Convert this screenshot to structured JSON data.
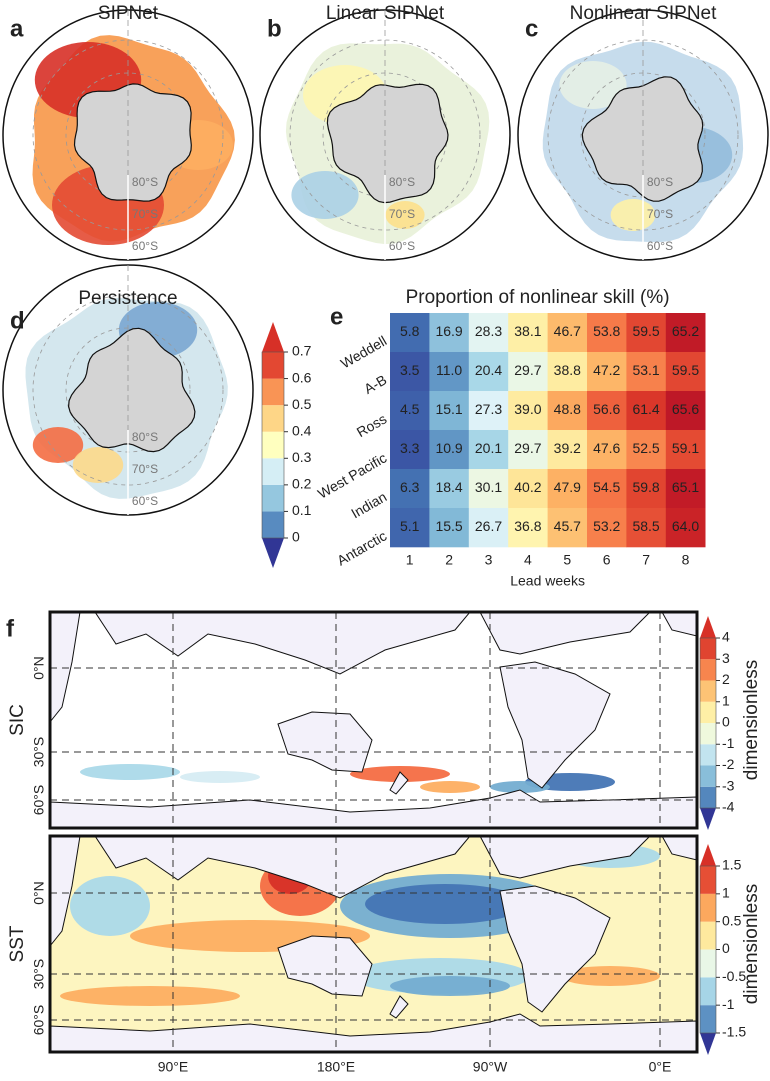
{
  "panels": [
    {
      "label": "a",
      "title": "SIPNet"
    },
    {
      "label": "b",
      "title": "Linear SIPNet"
    },
    {
      "label": "c",
      "title": "Nonlinear SIPNet"
    },
    {
      "label": "d",
      "title": "Persistence"
    }
  ],
  "polar_labels": [
    "80°S",
    "70°S",
    "60°S"
  ],
  "polar_colorbar": {
    "ticks": [
      0.7,
      0.6,
      0.5,
      0.4,
      0.3,
      0.2,
      0.1,
      0
    ]
  },
  "chart_data": {
    "type": "heatmap",
    "label": "e",
    "title": "Proportion of nonlinear skill (%)",
    "xlabel": "Lead weeks",
    "rows": [
      "Weddell",
      "A-B",
      "Ross",
      "West Pacific",
      "Indian",
      "Antarctic"
    ],
    "columns": [
      1,
      2,
      3,
      4,
      5,
      6,
      7,
      8
    ],
    "values": [
      [
        5.8,
        16.9,
        28.3,
        38.1,
        46.7,
        53.8,
        59.5,
        65.2
      ],
      [
        3.5,
        11.0,
        20.4,
        29.7,
        38.8,
        47.2,
        53.1,
        59.5
      ],
      [
        4.5,
        15.1,
        27.3,
        39.0,
        48.8,
        56.6,
        61.4,
        65.6
      ],
      [
        3.3,
        10.9,
        20.1,
        29.7,
        39.2,
        47.6,
        52.5,
        59.1
      ],
      [
        6.3,
        18.4,
        30.1,
        40.2,
        47.9,
        54.5,
        59.8,
        65.1
      ],
      [
        5.1,
        15.5,
        26.7,
        36.8,
        45.7,
        53.2,
        58.5,
        64.0
      ]
    ],
    "value_labels": [
      [
        "5.8",
        "16.9",
        "28.3",
        "38.1",
        "46.7",
        "53.8",
        "59.5",
        "65.2"
      ],
      [
        "3.5",
        "11.0",
        "20.4",
        "29.7",
        "38.8",
        "47.2",
        "53.1",
        "59.5"
      ],
      [
        "4.5",
        "15.1",
        "27.3",
        "39.0",
        "48.8",
        "56.6",
        "61.4",
        "65.6"
      ],
      [
        "3.3",
        "10.9",
        "20.1",
        "29.7",
        "39.2",
        "47.6",
        "52.5",
        "59.1"
      ],
      [
        "6.3",
        "18.4",
        "30.1",
        "40.2",
        "47.9",
        "54.5",
        "59.8",
        "65.1"
      ],
      [
        "5.1",
        "15.5",
        "26.7",
        "36.8",
        "45.7",
        "53.2",
        "58.5",
        "64.0"
      ]
    ]
  },
  "world": {
    "label": "f",
    "lat_labels": [
      "0°N",
      "30°S",
      "60°S"
    ],
    "lon_labels": [
      "90°E",
      "180°E",
      "90°W",
      "0°E"
    ],
    "panels": [
      {
        "name": "SIC",
        "colorbar_ticks": [
          4,
          3,
          2,
          1,
          0,
          -1,
          -2,
          -3,
          -4
        ],
        "colorbar_label": "dimensionless"
      },
      {
        "name": "SST",
        "colorbar_ticks": [
          1.5,
          1,
          0.5,
          0,
          -0.5,
          -1,
          -1.5
        ],
        "colorbar_label": "dimensionless"
      }
    ]
  }
}
